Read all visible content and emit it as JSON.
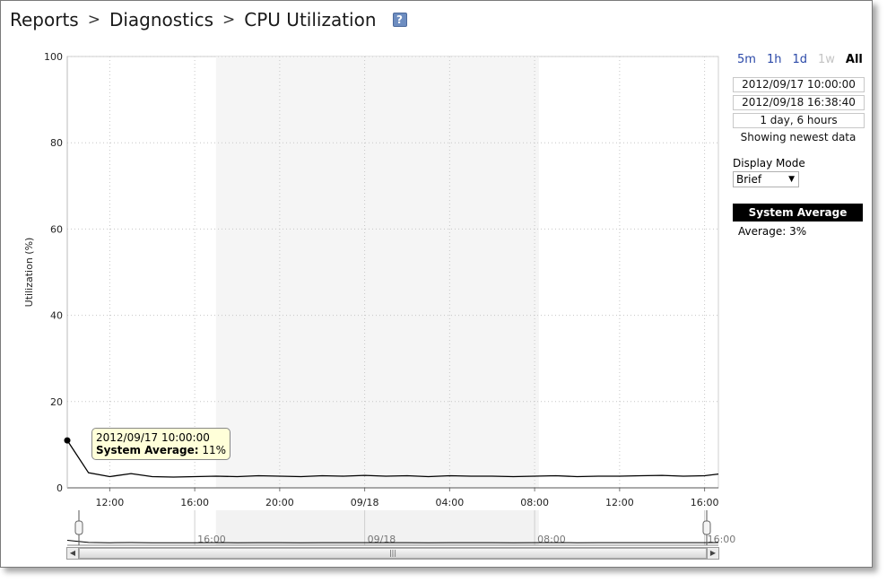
{
  "breadcrumb": {
    "items": [
      "Reports",
      "Diagnostics",
      "CPU Utilization"
    ],
    "separator": ">",
    "help_icon": "?"
  },
  "chart_data": {
    "type": "line",
    "ylabel": "Utilization (%)",
    "ylim": [
      0,
      100
    ],
    "y_ticks": [
      0,
      20,
      40,
      60,
      80,
      100
    ],
    "x_ticks": [
      "12:00",
      "16:00",
      "20:00",
      "09/18",
      "04:00",
      "08:00",
      "12:00",
      "16:00"
    ],
    "x_tick_hours": [
      2,
      6,
      10,
      14,
      18,
      22,
      26,
      30
    ],
    "xlim_hours": [
      0,
      30.65
    ],
    "shaded_hours": [
      7,
      22.2
    ],
    "grid": true,
    "series": [
      {
        "name": "System Average",
        "color": "#000000",
        "x_hours": [
          0,
          1,
          2,
          3,
          4,
          5,
          6,
          7,
          8,
          9,
          10,
          11,
          12,
          13,
          14,
          15,
          16,
          17,
          18,
          19,
          20,
          21,
          22,
          23,
          24,
          25,
          26,
          27,
          28,
          29,
          30,
          30.65
        ],
        "values": [
          11,
          3.5,
          2.6,
          3.3,
          2.6,
          2.5,
          2.6,
          2.7,
          2.6,
          2.8,
          2.7,
          2.6,
          2.8,
          2.7,
          2.9,
          2.7,
          2.8,
          2.6,
          2.8,
          2.7,
          2.7,
          2.6,
          2.7,
          2.8,
          2.6,
          2.7,
          2.7,
          2.8,
          2.9,
          2.7,
          2.8,
          3.2
        ]
      }
    ],
    "overview": {
      "x_ticks": [
        "16:00",
        "09/18",
        "08:00",
        "16:00"
      ],
      "x_tick_hours": [
        6,
        14,
        22,
        30
      ]
    }
  },
  "tooltip": {
    "datetime": "2012/09/17 10:00:00",
    "label": "System Average:",
    "value": "11%"
  },
  "side": {
    "ranges": [
      {
        "label": "5m",
        "state": "link"
      },
      {
        "label": "1h",
        "state": "link"
      },
      {
        "label": "1d",
        "state": "link"
      },
      {
        "label": "1w",
        "state": "disabled"
      },
      {
        "label": "All",
        "state": "active"
      }
    ],
    "start": "2012/09/17 10:00:00",
    "end": "2012/09/18 16:38:40",
    "duration": "1 day, 6 hours",
    "showing": "Showing newest data",
    "display_mode_label": "Display Mode",
    "display_mode_value": "Brief",
    "legend_title": "System Average",
    "legend_average": "Average: 3%"
  }
}
